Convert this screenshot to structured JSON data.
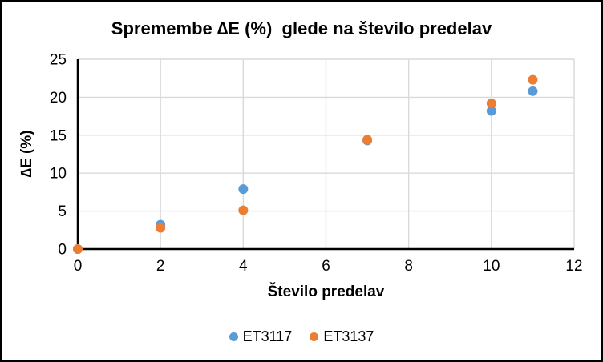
{
  "chart_data": {
    "type": "scatter",
    "title": "Spremembe ∆E (%)  glede na število predelav",
    "xlabel": "Število predelav",
    "ylabel": "∆E (%)",
    "xlim": [
      0,
      12
    ],
    "ylim": [
      0,
      25
    ],
    "xticks": [
      0,
      2,
      4,
      6,
      8,
      10,
      12
    ],
    "yticks": [
      0,
      5,
      10,
      15,
      20,
      25
    ],
    "grid": true,
    "grid_color": "#D9D9D9",
    "axis_color": "#000000",
    "legend_position": "bottom-center",
    "series": [
      {
        "name": "ET3117",
        "color": "#5B9BD5",
        "points": [
          [
            0,
            0
          ],
          [
            2,
            3.2
          ],
          [
            4,
            7.9
          ],
          [
            7,
            14.3
          ],
          [
            10,
            18.2
          ],
          [
            11,
            20.8
          ]
        ]
      },
      {
        "name": "ET3137",
        "color": "#ED7D31",
        "points": [
          [
            0,
            0
          ],
          [
            2,
            2.8
          ],
          [
            4,
            5.1
          ],
          [
            7,
            14.4
          ],
          [
            10,
            19.2
          ],
          [
            11,
            22.3
          ]
        ]
      }
    ]
  }
}
